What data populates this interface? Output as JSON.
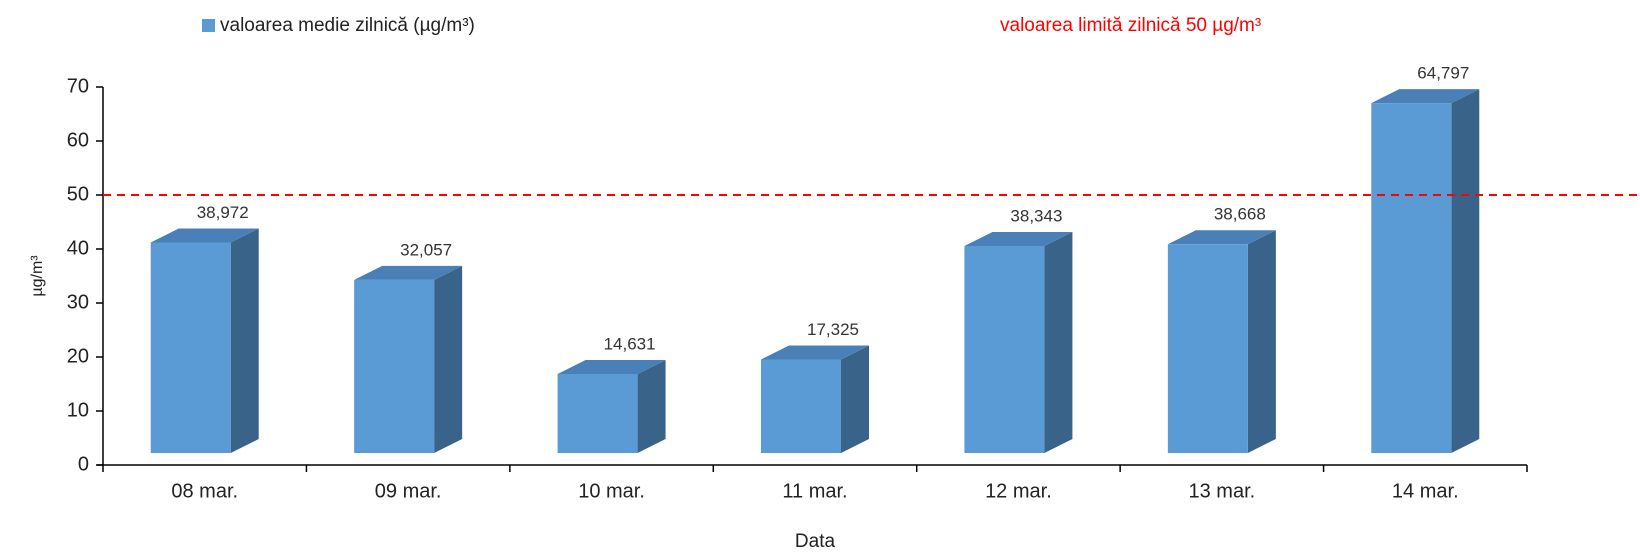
{
  "chart_data": {
    "type": "bar3d",
    "series": [
      {
        "name": "valoarea medie zilnică (µg/m³)",
        "color": "#5b9bd5",
        "values": [
          38.972,
          32.057,
          14.631,
          17.325,
          38.343,
          38.668,
          64.797
        ],
        "value_labels": [
          "38,972",
          "32,057",
          "14,631",
          "17,325",
          "38,343",
          "38,668",
          "64,797"
        ]
      }
    ],
    "categories": [
      "08 mar.",
      "09 mar.",
      "10 mar.",
      "11 mar.",
      "12 mar.",
      "13 mar.",
      "14 mar."
    ],
    "ylim": [
      0,
      70
    ],
    "yticks": [
      0,
      10,
      20,
      30,
      40,
      50,
      60,
      70
    ],
    "y_label": "µg/m³",
    "x_label": "Data",
    "reference_line": {
      "value": 50,
      "label": "valoarea limită zilnică 50 µg/m³",
      "color": "#ff0000"
    }
  }
}
